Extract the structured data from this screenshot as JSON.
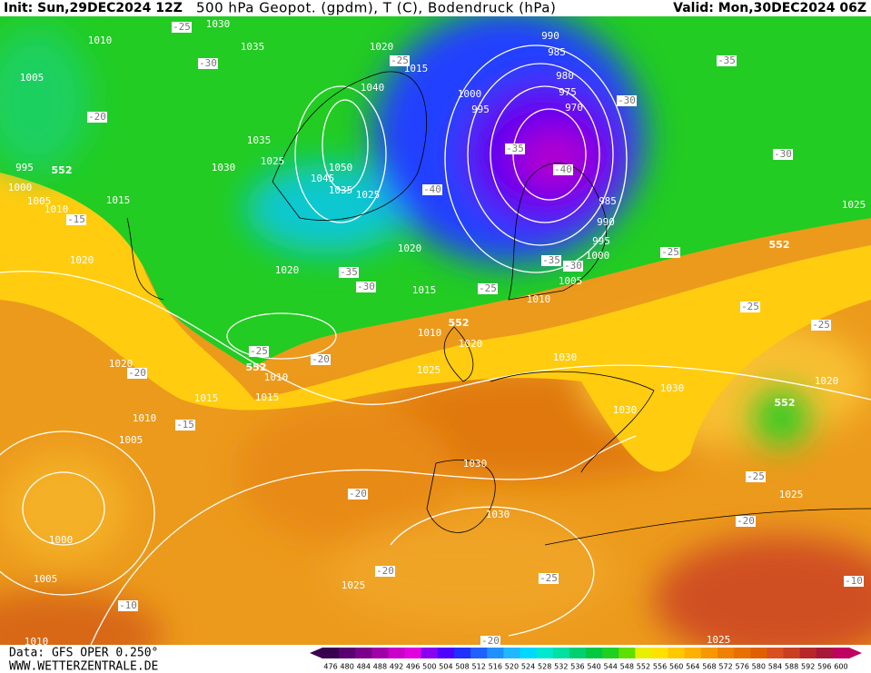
{
  "header": {
    "init": "Init: Sun,29DEC2024 12Z",
    "title": "500 hPa Geopot. (gpdm), T (C), Bodendruck (hPa)",
    "valid": "Valid: Mon,30DEC2024 06Z"
  },
  "footer": {
    "data": "Data: GFS OPER 0.250°",
    "site": "WWW.WETTERZENTRALE.DE"
  },
  "map": {
    "isobar_labels": [
      "1030",
      "1010",
      "1035",
      "1020",
      "1015",
      "1005",
      "1040",
      "1000",
      "995",
      "990",
      "985",
      "980",
      "975",
      "970",
      "1035",
      "1025",
      "1030",
      "1050",
      "1045",
      "1035",
      "1025",
      "995",
      "1000",
      "1005",
      "1010",
      "1015",
      "985",
      "990",
      "995",
      "1000",
      "1005",
      "1010",
      "1020",
      "1020",
      "1020",
      "1015",
      "1010",
      "1020",
      "1025",
      "1030",
      "1010",
      "1015",
      "1015",
      "1020",
      "1010",
      "1005",
      "1030",
      "1030",
      "1020",
      "1030",
      "1030",
      "1025",
      "1000",
      "1005",
      "1025",
      "1025",
      "1010",
      "1025"
    ],
    "temperature_labels": [
      "-25",
      "-30",
      "-20",
      "-15",
      "-35",
      "-30",
      "-35",
      "-40",
      "-30",
      "-40",
      "-35",
      "-30",
      "-25",
      "-35",
      "-30",
      "-25",
      "-25",
      "-25",
      "-25",
      "-20",
      "-20",
      "-15",
      "-20",
      "-20",
      "-25",
      "-25",
      "-20",
      "-10",
      "-10",
      "-20",
      "-25"
    ],
    "height_labels": [
      "552",
      "552",
      "552",
      "552",
      "552"
    ]
  },
  "colorbar": {
    "ticks": [
      476,
      480,
      484,
      488,
      492,
      496,
      500,
      504,
      508,
      512,
      516,
      520,
      524,
      528,
      532,
      536,
      540,
      544,
      548,
      552,
      556,
      560,
      564,
      568,
      572,
      576,
      580,
      584,
      588,
      592,
      596,
      600
    ],
    "colors": [
      "#3a0050",
      "#5a0070",
      "#7a008a",
      "#a000a8",
      "#c800c8",
      "#e000e0",
      "#8a00f0",
      "#5000ff",
      "#2030ff",
      "#2060ff",
      "#2090ff",
      "#20b8ff",
      "#00d8ff",
      "#00e8d0",
      "#00e0a0",
      "#00d070",
      "#00c840",
      "#20d020",
      "#60e000",
      "#e8f000",
      "#ffe000",
      "#ffc800",
      "#ffb000",
      "#f89800",
      "#f08000",
      "#e87000",
      "#e06000",
      "#d85020",
      "#c84020",
      "#b82828",
      "#a81838",
      "#c00060"
    ]
  }
}
